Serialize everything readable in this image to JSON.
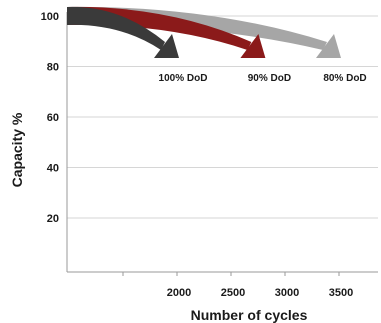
{
  "chart_data": {
    "type": "line",
    "xlabel": "Number of cycles",
    "ylabel": "Capacity %",
    "y_ticks": [
      "100",
      "80",
      "60",
      "40",
      "20"
    ],
    "x_ticks": [
      "2000",
      "2500",
      "3000",
      "3500"
    ],
    "grid": "horizontal",
    "series": [
      {
        "name": "100% DoD",
        "color": "#3a3a3a",
        "x": [
          0,
          2000
        ],
        "y": [
          100,
          81
        ]
      },
      {
        "name": "90% DoD",
        "color": "#8b1a1a",
        "x": [
          0,
          2800
        ],
        "y": [
          100,
          81
        ]
      },
      {
        "name": "80% DoD",
        "color": "#a6a6a6",
        "x": [
          0,
          3500
        ],
        "y": [
          100,
          81
        ]
      }
    ]
  }
}
